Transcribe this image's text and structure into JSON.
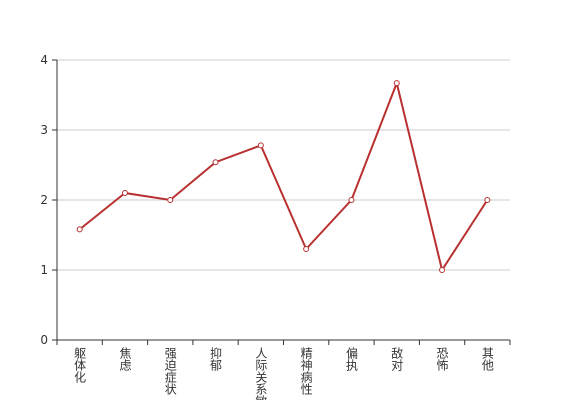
{
  "chart_data": {
    "type": "line",
    "categories": [
      "躯体化",
      "焦虑",
      "强迫症状",
      "抑郁",
      "人际关系敏感",
      "精神病性",
      "偏执",
      "敌对",
      "恐怖",
      "其他"
    ],
    "values": [
      1.58,
      2.1,
      2.0,
      2.54,
      2.78,
      1.3,
      2.0,
      3.67,
      1.0,
      2.0
    ],
    "color": "#b8302f",
    "ylim": [
      0,
      4
    ],
    "yticks": [
      0,
      1,
      2,
      3,
      4
    ],
    "grid": true
  }
}
